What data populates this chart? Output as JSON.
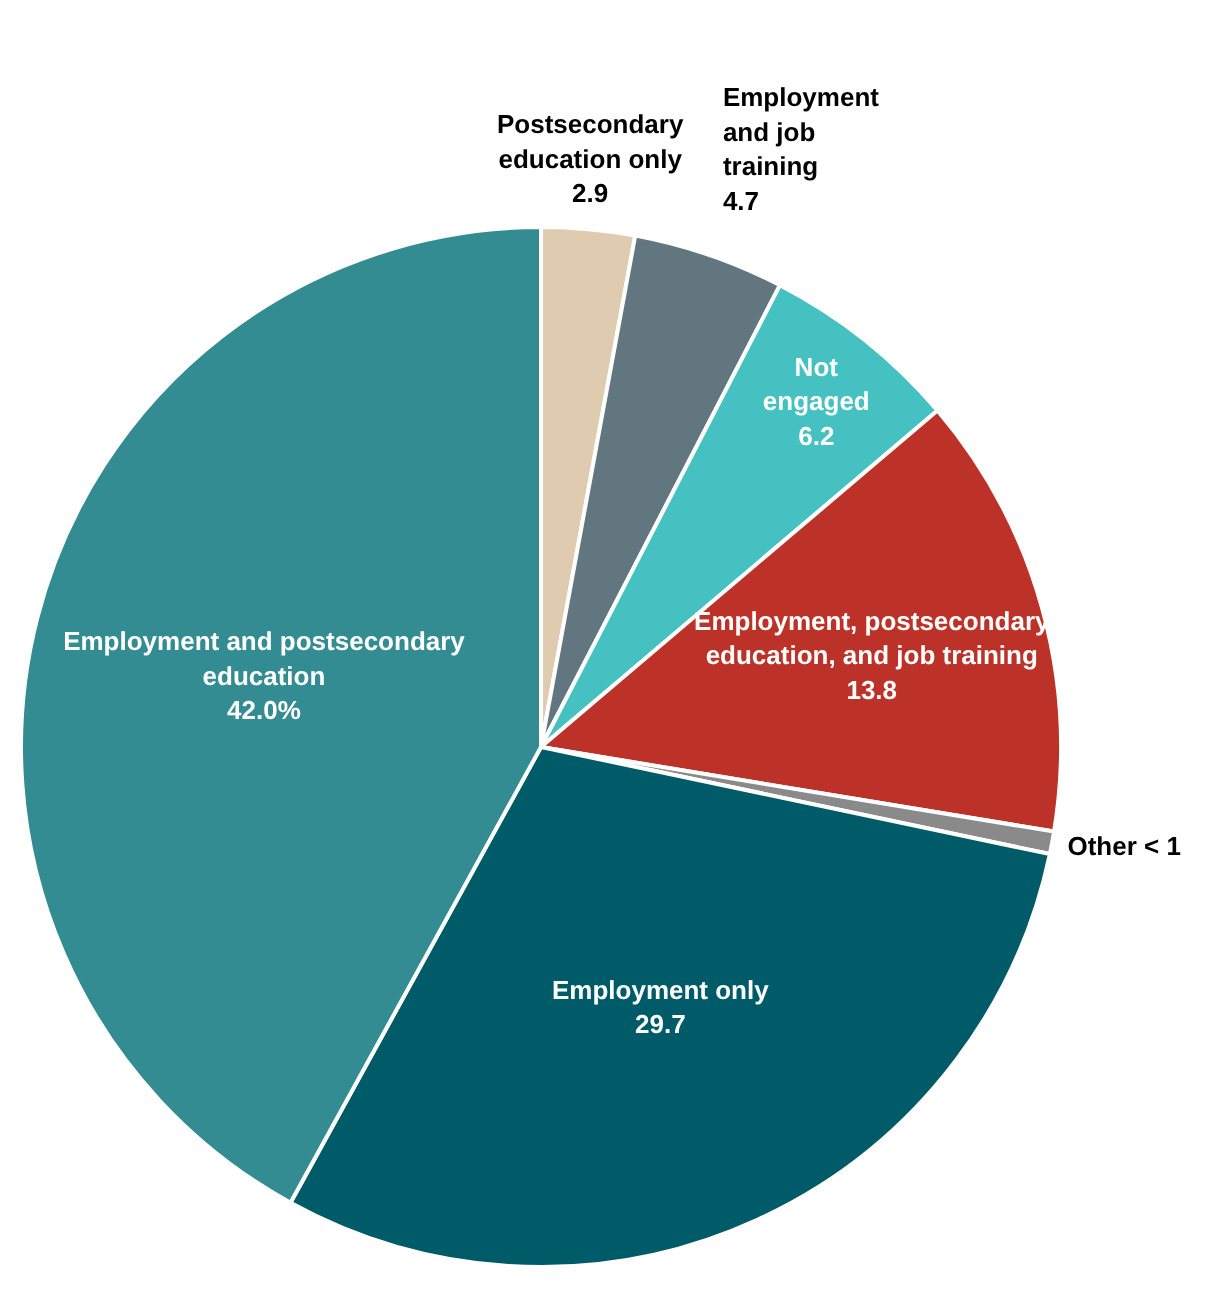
{
  "chart_data": {
    "type": "pie",
    "categories": [
      "Postsecondary education only",
      "Employment and job training",
      "Not engaged",
      "Employment, postsecondary education, and job training",
      "Other < 1",
      "Employment only",
      "Employment and postsecondary education"
    ],
    "values": [
      2.9,
      4.7,
      6.2,
      13.8,
      0.7,
      29.7,
      42.0
    ],
    "value_labels": [
      "2.9",
      "4.7",
      "6.2",
      "13.8",
      null,
      "29.7",
      "42.0%"
    ],
    "colors": [
      "#dfcbb0",
      "#627680",
      "#45c1c1",
      "#bd3228",
      "#8a8a8a",
      "#005b69",
      "#348c93"
    ]
  }
}
